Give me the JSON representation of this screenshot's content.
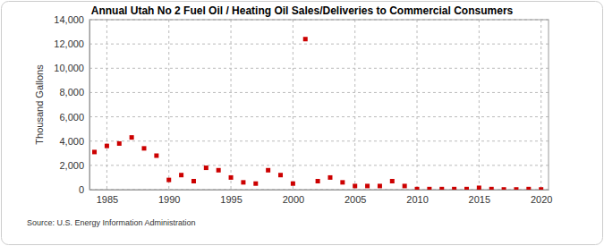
{
  "chart_data": {
    "type": "scatter",
    "title": "Annual Utah No 2 Fuel Oil / Heating Oil Sales/Deliveries to Commercial Consumers",
    "y_label": "Thousand Gallons",
    "source": "Source: U.S. Energy Information Administration",
    "x": [
      1984,
      1985,
      1986,
      1987,
      1988,
      1989,
      1990,
      1991,
      1992,
      1993,
      1994,
      1995,
      1996,
      1997,
      1998,
      1999,
      2000,
      2001,
      2002,
      2003,
      2004,
      2005,
      2006,
      2007,
      2008,
      2009,
      2010,
      2011,
      2012,
      2013,
      2014,
      2015,
      2016,
      2017,
      2018,
      2019,
      2020
    ],
    "values": [
      3100,
      3600,
      3800,
      4300,
      3400,
      2800,
      800,
      1200,
      700,
      1800,
      1600,
      1000,
      600,
      500,
      1600,
      1200,
      500,
      12400,
      700,
      1000,
      600,
      300,
      300,
      300,
      700,
      300,
      50,
      50,
      50,
      50,
      50,
      150,
      50,
      20,
      20,
      50,
      20
    ],
    "color": "#cc0000",
    "marker": "square",
    "xlim": [
      1983.6,
      2020.6
    ],
    "xticks": [
      1985,
      1990,
      1995,
      2000,
      2005,
      2010,
      2015,
      2020
    ],
    "ylim": [
      0,
      14000
    ],
    "yticks": [
      0,
      {
        "value": 2000,
        "label": "2,000"
      },
      {
        "value": 4000,
        "label": "4,000"
      },
      {
        "value": 6000,
        "label": "6,000"
      },
      {
        "value": 8000,
        "label": "8,000"
      },
      {
        "value": 10000,
        "label": "10,000"
      },
      {
        "value": 12000,
        "label": "12,000"
      },
      {
        "value": 14000,
        "label": "14,000"
      }
    ],
    "grid": true
  }
}
